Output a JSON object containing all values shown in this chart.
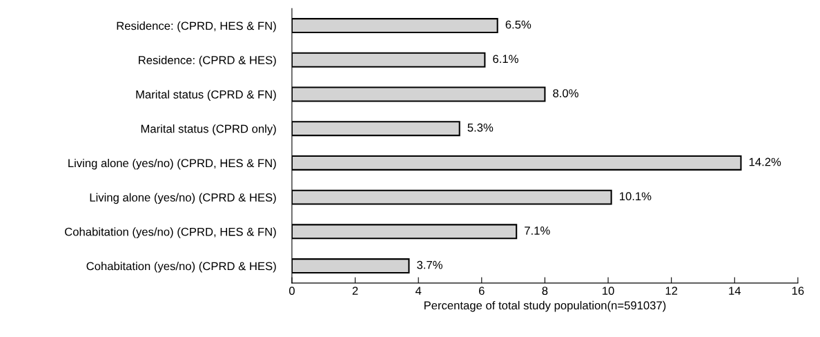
{
  "chart_data": {
    "type": "bar",
    "orientation": "horizontal",
    "xlabel": "Percentage of total study population(n=591037)",
    "categories": [
      "Residence: (CPRD, HES & FN)",
      "Residence: (CPRD & HES)",
      "Marital status (CPRD & FN)",
      "Marital status (CPRD only)",
      "Living alone (yes/no) (CPRD, HES & FN)",
      "Living alone (yes/no) (CPRD & HES)",
      "Cohabitation (yes/no) (CPRD, HES & FN)",
      "Cohabitation (yes/no) (CPRD & HES)"
    ],
    "values": [
      6.5,
      6.1,
      8.0,
      5.3,
      14.2,
      10.1,
      7.1,
      3.7
    ],
    "value_labels": [
      "6.5%",
      "6.1%",
      "8.0%",
      "5.3%",
      "14.2%",
      "10.1%",
      "7.1%",
      "3.7%"
    ],
    "color": "#d3d3d3",
    "xlim": [
      0,
      16
    ],
    "xticks": [
      0,
      2,
      4,
      6,
      8,
      10,
      12,
      14,
      16
    ],
    "grid": false,
    "legend": false
  }
}
